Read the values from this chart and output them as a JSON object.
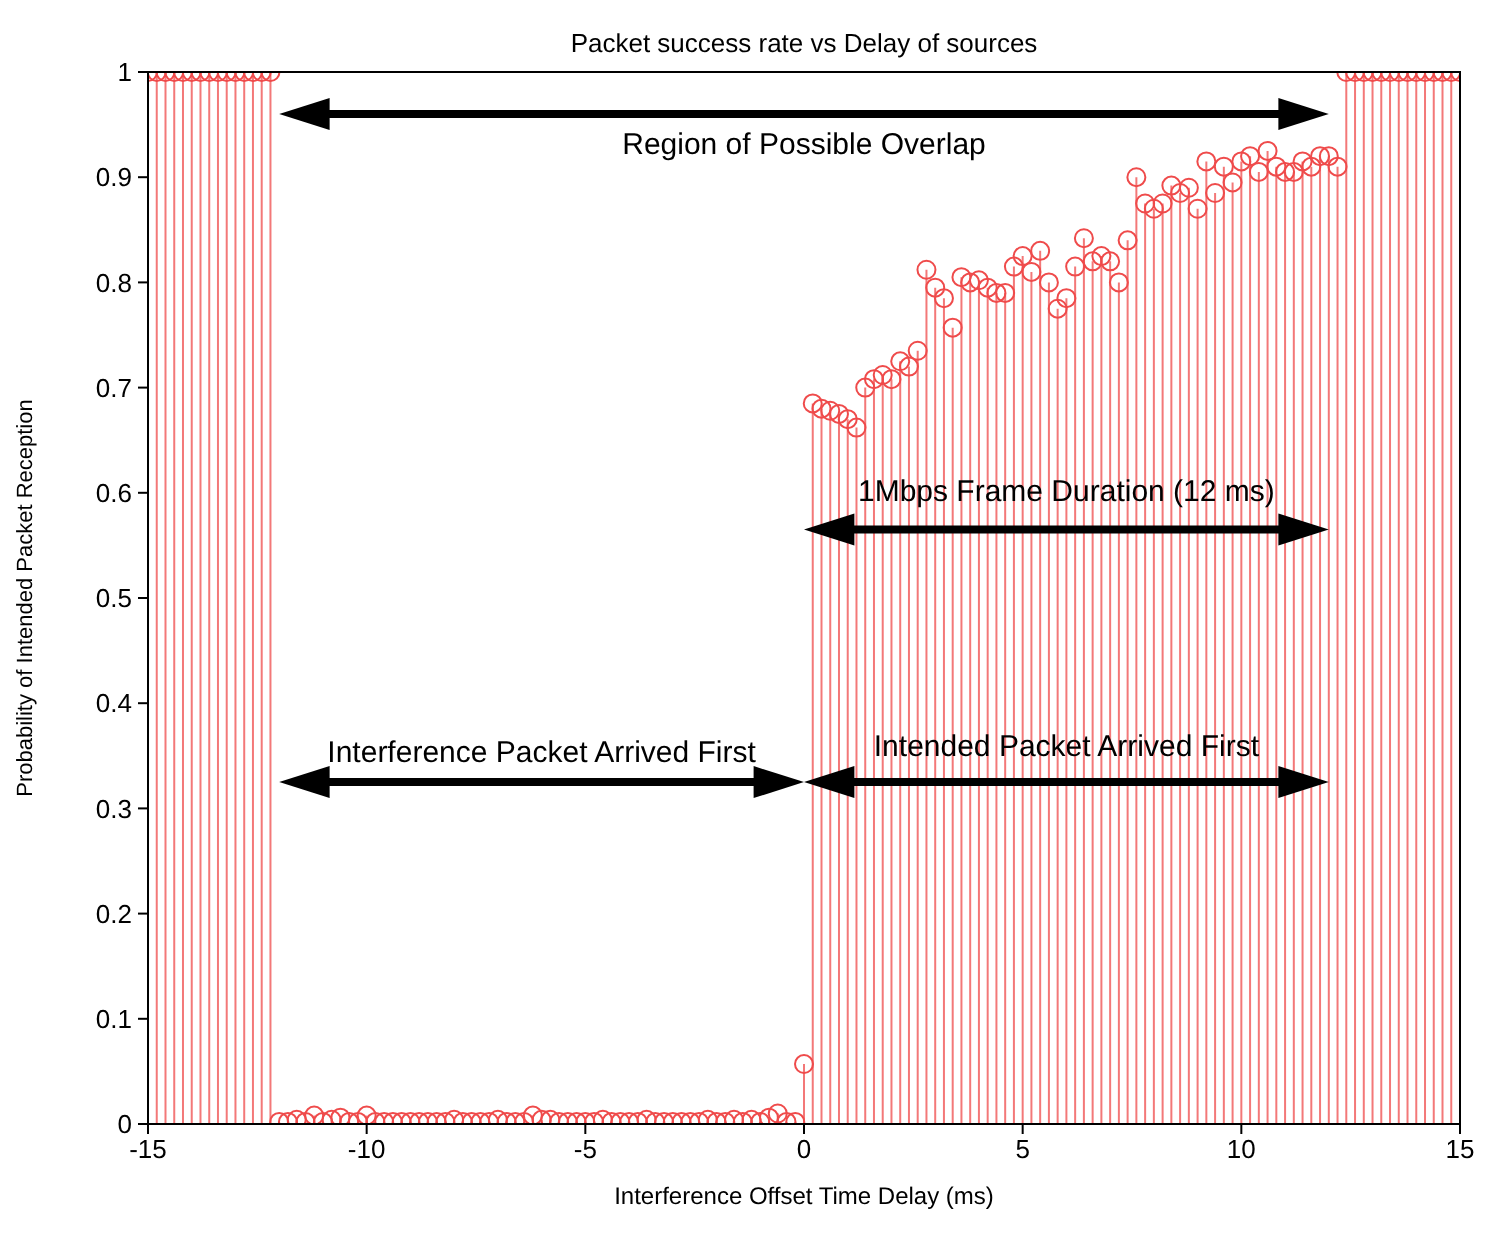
{
  "chart_data": {
    "type": "lollipop",
    "title": "Packet success rate vs Delay of sources",
    "xlabel": "Interference Offset Time Delay (ms)",
    "ylabel": "Probability of Intended Packet Reception",
    "x": [
      -15,
      -14.8,
      -14.6,
      -14.4,
      -14.2,
      -14,
      -13.8,
      -13.6,
      -13.4,
      -13.2,
      -13,
      -12.8,
      -12.6,
      -12.4,
      -12.2,
      -12,
      -11.8,
      -11.6,
      -11.4,
      -11.2,
      -11,
      -10.8,
      -10.6,
      -10.4,
      -10.2,
      -10,
      -9.8,
      -9.6,
      -9.4,
      -9.2,
      -9,
      -8.8,
      -8.6,
      -8.4,
      -8.2,
      -8,
      -7.8,
      -7.6,
      -7.4,
      -7.2,
      -7,
      -6.8,
      -6.6,
      -6.4,
      -6.2,
      -6,
      -5.8,
      -5.6,
      -5.4,
      -5.2,
      -5,
      -4.8,
      -4.6,
      -4.4,
      -4.2,
      -4,
      -3.8,
      -3.6,
      -3.4,
      -3.2,
      -3,
      -2.8,
      -2.6,
      -2.4,
      -2.2,
      -2,
      -1.8,
      -1.6,
      -1.4,
      -1.2,
      -1,
      -0.8,
      -0.6,
      -0.4,
      -0.2,
      0,
      0.2,
      0.4,
      0.6,
      0.8,
      1,
      1.2,
      1.4,
      1.6,
      1.8,
      2,
      2.2,
      2.4,
      2.6,
      2.8,
      3,
      3.2,
      3.4,
      3.6,
      3.8,
      4,
      4.2,
      4.4,
      4.6,
      4.8,
      5,
      5.2,
      5.4,
      5.6,
      5.8,
      6,
      6.2,
      6.4,
      6.6,
      6.8,
      7,
      7.2,
      7.4,
      7.6,
      7.8,
      8,
      8.2,
      8.4,
      8.6,
      8.8,
      9,
      9.2,
      9.4,
      9.6,
      9.8,
      10,
      10.2,
      10.4,
      10.6,
      10.8,
      11,
      11.2,
      11.4,
      11.6,
      11.8,
      12,
      12.2,
      12.4,
      12.6,
      12.8,
      13,
      13.2,
      13.4,
      13.6,
      13.8,
      14,
      14.2,
      14.4,
      14.6,
      14.8,
      15
    ],
    "series": [
      {
        "color": "#ef4b4b",
        "values": [
          1,
          1,
          1,
          1,
          1,
          1,
          1,
          1,
          1,
          1,
          1,
          1,
          1,
          1,
          1,
          0.002,
          0.002,
          0.004,
          0.002,
          0.008,
          0.002,
          0.004,
          0.006,
          0.002,
          0.002,
          0.008,
          0.002,
          0.002,
          0.002,
          0.002,
          0.002,
          0.002,
          0.002,
          0.002,
          0.002,
          0.004,
          0.002,
          0.002,
          0.002,
          0.002,
          0.004,
          0.002,
          0.002,
          0.002,
          0.008,
          0.004,
          0.004,
          0.002,
          0.002,
          0.002,
          0.002,
          0.002,
          0.004,
          0.002,
          0.002,
          0.002,
          0.002,
          0.004,
          0.002,
          0.002,
          0.002,
          0.002,
          0.002,
          0.002,
          0.004,
          0.002,
          0.002,
          0.004,
          0.002,
          0.004,
          0.002,
          0.006,
          0.01,
          0.002,
          0.002,
          0.057,
          0.685,
          0.68,
          0.678,
          0.675,
          0.67,
          0.662,
          0.7,
          0.708,
          0.712,
          0.708,
          0.725,
          0.72,
          0.735,
          0.812,
          0.795,
          0.785,
          0.757,
          0.805,
          0.8,
          0.802,
          0.795,
          0.79,
          0.79,
          0.815,
          0.825,
          0.81,
          0.83,
          0.8,
          0.775,
          0.785,
          0.815,
          0.842,
          0.82,
          0.825,
          0.82,
          0.8,
          0.84,
          0.9,
          0.875,
          0.87,
          0.875,
          0.892,
          0.885,
          0.89,
          0.87,
          0.915,
          0.885,
          0.91,
          0.895,
          0.915,
          0.92,
          0.905,
          0.925,
          0.91,
          0.905,
          0.905,
          0.915,
          0.91,
          0.92,
          0.92,
          0.91,
          1,
          1,
          1,
          1,
          1,
          1,
          1,
          1,
          1,
          1,
          1,
          1,
          1,
          1
        ]
      }
    ],
    "xlim": [
      -15,
      15
    ],
    "xticks": [
      -15,
      -10,
      -5,
      0,
      5,
      10,
      15
    ],
    "ylim": [
      0,
      1
    ],
    "yticks": [
      0,
      0.1,
      0.2,
      0.3,
      0.4,
      0.5,
      0.6,
      0.7,
      0.8,
      0.9,
      1
    ],
    "marker": "circle",
    "annotations": [
      "Region of Possible Overlap",
      "1Mbps Frame Duration (12 ms)",
      "Interference Packet Arrived First",
      "Intended Packet Arrived First"
    ]
  }
}
